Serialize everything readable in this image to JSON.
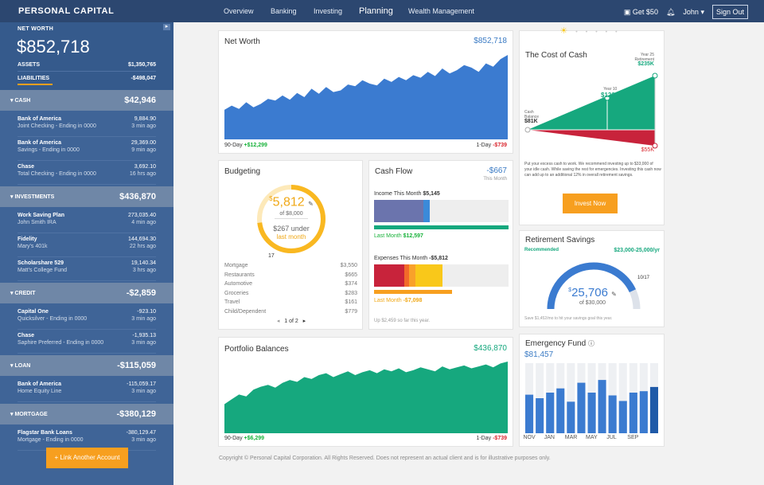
{
  "topbar": {
    "logo": "PERSONAL CAPITAL",
    "nav": [
      "Overview",
      "Banking",
      "Investing",
      "Planning",
      "Wealth Management"
    ],
    "get50": "Get $50",
    "user": "John",
    "signout": "Sign Out"
  },
  "sidebar": {
    "networth_label": "NET WORTH",
    "networth_value": "$852,718",
    "assets_label": "ASSETS",
    "assets_value": "$1,350,765",
    "liabilities_label": "LIABILITIES",
    "liabilities_value": "-$498,047",
    "sections": [
      {
        "label": "CASH",
        "amount": "$42,946",
        "accounts": [
          {
            "name": "Bank of America",
            "sub": "Joint Checking - Ending in 0000",
            "value": "9,884.90",
            "time": "3 min ago"
          },
          {
            "name": "Bank of America",
            "sub": "Savings - Ending in 0000",
            "value": "29,369.00",
            "time": "9 min ago"
          },
          {
            "name": "Chase",
            "sub": "Total Checking - Ending in 0000",
            "value": "3,692.10",
            "time": "16 hrs ago"
          }
        ]
      },
      {
        "label": "INVESTMENTS",
        "amount": "$436,870",
        "accounts": [
          {
            "name": "Work Saving Plan",
            "sub": "John Smith IRA",
            "value": "273,035.40",
            "time": "4 min ago"
          },
          {
            "name": "Fidelity",
            "sub": "Mary's 401k",
            "value": "144,694.30",
            "time": "22 hrs ago"
          },
          {
            "name": "Scholarshare 529",
            "sub": "Matt's College Fund",
            "value": "19,140.34",
            "time": "3 hrs ago"
          }
        ]
      },
      {
        "label": "CREDIT",
        "amount": "-$2,859",
        "accounts": [
          {
            "name": "Capital One",
            "sub": "Quicksilver - Ending in 0000",
            "value": "-923.10",
            "time": "3 min ago"
          },
          {
            "name": "Chase",
            "sub": "Saphire Preferred - Ending in 0000",
            "value": "-1,935.13",
            "time": "3 min ago"
          }
        ]
      },
      {
        "label": "LOAN",
        "amount": "-$115,059",
        "accounts": [
          {
            "name": "Bank of America",
            "sub": "Home Equity Line",
            "value": "-115,059.17",
            "time": "3 min ago"
          }
        ]
      },
      {
        "label": "MORTGAGE",
        "amount": "-$380,129",
        "accounts": [
          {
            "name": "Flagstar Bank Loans",
            "sub": "Mortgage - Ending in 0000",
            "value": "-380,129.47",
            "time": "3 min ago"
          }
        ]
      }
    ],
    "link_button": "+ Link Another Account"
  },
  "networth_card": {
    "title": "Net Worth",
    "value": "$852,718",
    "d90_label": "90-Day",
    "d90": "+$12,299",
    "d1_label": "1-Day",
    "d1": "-$739",
    "color": "#3b7bd0",
    "series": [
      35,
      40,
      36,
      44,
      38,
      42,
      48,
      46,
      52,
      47,
      55,
      50,
      60,
      54,
      62,
      56,
      58,
      65,
      63,
      70,
      66,
      64,
      72,
      68,
      74,
      70,
      76,
      73,
      80,
      75,
      84,
      78,
      82,
      88,
      85,
      80,
      90,
      86,
      95,
      100
    ]
  },
  "budgeting": {
    "title": "Budgeting",
    "spent": "5,812",
    "of": "of $8,000",
    "under": "$267 under",
    "last": "last month",
    "day": "17",
    "progress": 0.73,
    "categories": [
      {
        "name": "Mortgage",
        "value": "$3,550"
      },
      {
        "name": "Restaurants",
        "value": "$665"
      },
      {
        "name": "Automotive",
        "value": "$374"
      },
      {
        "name": "Groceries",
        "value": "$283"
      },
      {
        "name": "Travel",
        "value": "$161"
      },
      {
        "name": "Child/Dependent",
        "value": "$779"
      }
    ],
    "pager": "1 of 2"
  },
  "cashflow": {
    "title": "Cash Flow",
    "value": "-$667",
    "period": "This Month",
    "income_label": "Income This Month",
    "income": "$5,145",
    "income_last_label": "Last Month",
    "income_last": "$12,597",
    "expenses_label": "Expenses This Month",
    "expenses": "-$5,812",
    "expenses_last_label": "Last Month",
    "expenses_last": "-$7,098",
    "note": "Up $2,459 so far this year."
  },
  "cost_of_cash": {
    "title": "The Cost of Cash",
    "y25_label": "Year 25",
    "y25_sub": "Retirement",
    "y25": "$235K",
    "y10_label": "Year 10",
    "y10": "$122K",
    "cash_label": "Cash",
    "cash_sub": "Balance",
    "cash": "$81K",
    "loss": "$55K",
    "blurb": "Put your excess cash to work. We recommend investing up to $33,000 of your idle cash. While saving the rest for emergencies. Investing this cash now can add up to an additional 12% in overall retirement savings.",
    "button": "Invest Now"
  },
  "retirement": {
    "title": "Retirement Savings",
    "rec_label": "Recommended",
    "rec_value": "$23,000-25,000/yr",
    "value": "25,706",
    "of": "of $30,000",
    "date": "10/17",
    "note": "Save $1,452/mo to hit your savings goal this year.",
    "progress": 0.86
  },
  "portfolio": {
    "title": "Portfolio Balances",
    "value": "$436,870",
    "d90_label": "90-Day",
    "d90": "+$6,299",
    "d1_label": "1-Day",
    "d1": "-$739",
    "color": "#16a87e",
    "series": [
      30,
      35,
      40,
      38,
      45,
      48,
      50,
      47,
      52,
      55,
      53,
      58,
      56,
      60,
      62,
      58,
      61,
      64,
      60,
      63,
      65,
      62,
      66,
      64,
      67,
      63,
      65,
      68,
      66,
      64,
      69,
      66,
      68,
      70,
      67,
      69,
      71,
      68,
      72,
      74
    ]
  },
  "emergency": {
    "title": "Emergency Fund",
    "value": "$81,457",
    "months": [
      "NOV",
      "JAN",
      "MAR",
      "MAY",
      "JUL",
      "SEP"
    ],
    "bars": [
      0.55,
      0.5,
      0.58,
      0.64,
      0.45,
      0.72,
      0.58,
      0.76,
      0.54,
      0.46,
      0.58,
      0.6,
      0.66
    ]
  },
  "footer": "Copyright © Personal Capital Corporation. All Rights Reserved. Does not represent an actual client and is for illustrative purposes only."
}
